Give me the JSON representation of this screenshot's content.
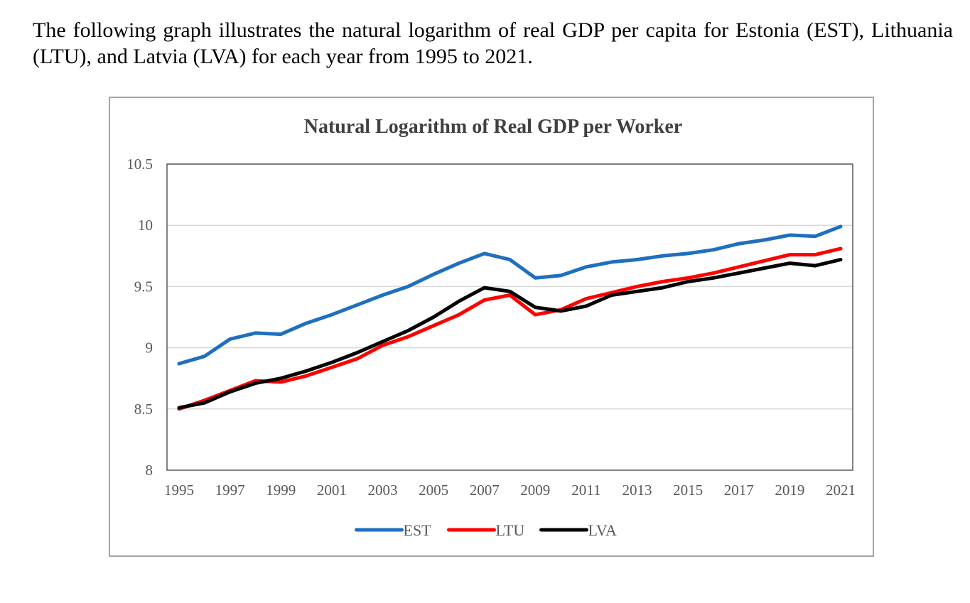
{
  "intro_text": "The following graph illustrates the natural logarithm of real GDP per capita for Estonia (EST), Lithuania (LTU), and Latvia (LVA) for each year from 1995 to 2021.",
  "chart_data": {
    "type": "line",
    "title": "Natural Logarithm of Real GDP per Worker",
    "xlabel": "",
    "ylabel": "",
    "ylim": [
      8,
      10.5
    ],
    "yticks": [
      "8",
      "8.5",
      "9",
      "9.5",
      "10",
      "10.5"
    ],
    "ytick_values": [
      8,
      8.5,
      9,
      9.5,
      10,
      10.5
    ],
    "x": [
      1995,
      1996,
      1997,
      1998,
      1999,
      2000,
      2001,
      2002,
      2003,
      2004,
      2005,
      2006,
      2007,
      2008,
      2009,
      2010,
      2011,
      2012,
      2013,
      2014,
      2015,
      2016,
      2017,
      2018,
      2019,
      2020,
      2021
    ],
    "xticks": [
      "1995",
      "1997",
      "1999",
      "2001",
      "2003",
      "2005",
      "2007",
      "2009",
      "2011",
      "2013",
      "2015",
      "2017",
      "2019",
      "2021"
    ],
    "xtick_values": [
      1995,
      1997,
      1999,
      2001,
      2003,
      2005,
      2007,
      2009,
      2011,
      2013,
      2015,
      2017,
      2019,
      2021
    ],
    "grid": "horizontal",
    "legend_position": "bottom",
    "series": [
      {
        "name": "EST",
        "color": "#1f6fbf",
        "values": [
          8.87,
          8.93,
          9.07,
          9.12,
          9.11,
          9.2,
          9.27,
          9.35,
          9.43,
          9.5,
          9.6,
          9.69,
          9.77,
          9.72,
          9.57,
          9.59,
          9.66,
          9.7,
          9.72,
          9.75,
          9.77,
          9.8,
          9.85,
          9.88,
          9.92,
          9.91,
          9.99
        ]
      },
      {
        "name": "LTU",
        "color": "#ff0000",
        "values": [
          8.5,
          8.57,
          8.65,
          8.73,
          8.72,
          8.77,
          8.84,
          8.91,
          9.02,
          9.09,
          9.18,
          9.27,
          9.39,
          9.43,
          9.27,
          9.31,
          9.4,
          9.45,
          9.5,
          9.54,
          9.57,
          9.61,
          9.66,
          9.71,
          9.76,
          9.76,
          9.81
        ]
      },
      {
        "name": "LVA",
        "color": "#000000",
        "values": [
          8.51,
          8.55,
          8.64,
          8.71,
          8.75,
          8.81,
          8.88,
          8.96,
          9.05,
          9.14,
          9.25,
          9.38,
          9.49,
          9.46,
          9.33,
          9.3,
          9.34,
          9.43,
          9.46,
          9.49,
          9.54,
          9.57,
          9.61,
          9.65,
          9.69,
          9.67,
          9.72
        ]
      }
    ]
  }
}
